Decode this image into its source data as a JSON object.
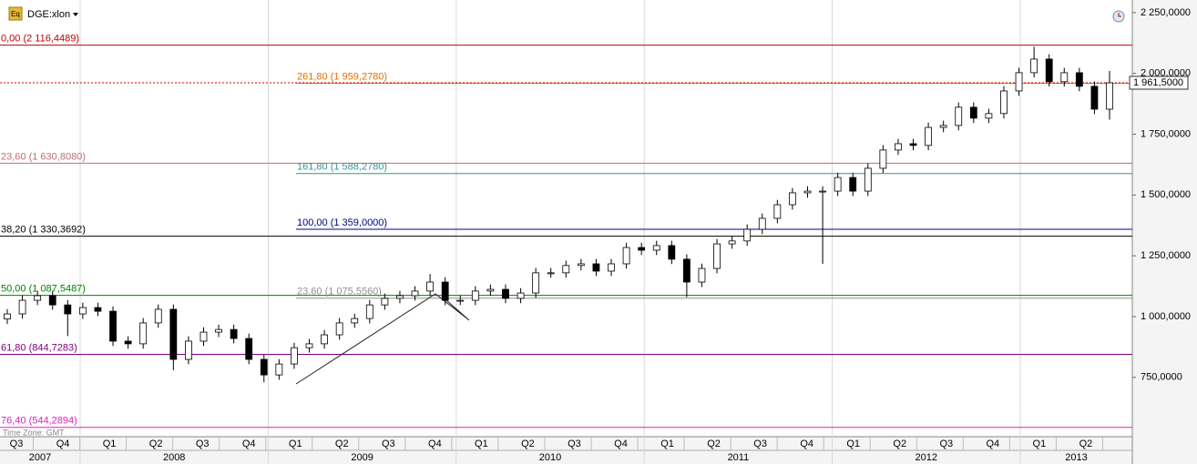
{
  "symbol": "DGE:xlon",
  "time_zone": "Time Zone: GMT",
  "chart_data": {
    "type": "candlestick",
    "ylim": [
      506,
      2302
    ],
    "yticks": [
      {
        "value": 2250,
        "label": "2 250,0000"
      },
      {
        "value": 2000,
        "label": "2 000,0000"
      },
      {
        "value": 1750,
        "label": "1 750,0000"
      },
      {
        "value": 1500,
        "label": "1 500,0000"
      },
      {
        "value": 1250,
        "label": "1 250,0000"
      },
      {
        "value": 1000,
        "label": "1 000,0000"
      },
      {
        "value": 750,
        "label": "750,0000"
      }
    ],
    "quarters": [
      "Q3",
      "Q4",
      "Q1",
      "Q2",
      "Q3",
      "Q4",
      "Q1",
      "Q2",
      "Q3",
      "Q4",
      "Q1",
      "Q2",
      "Q3",
      "Q4",
      "Q1",
      "Q2",
      "Q3",
      "Q4",
      "Q1",
      "Q2",
      "Q3",
      "Q4",
      "Q1",
      "Q2"
    ],
    "years": [
      "2007",
      "2008",
      "2009",
      "2010",
      "2011",
      "2012",
      "2013"
    ],
    "last_price": {
      "value": 1961.5,
      "label": "1 961,5000",
      "color": "#cc0000"
    },
    "up_color": "#ffffff",
    "down_color": "#000000",
    "open": [
      990,
      1011,
      1067,
      1086,
      1048,
      1011,
      1037,
      1022,
      899,
      888,
      974,
      1030,
      824,
      899,
      936,
      947,
      910,
      824,
      760,
      805,
      872,
      888,
      925,
      974,
      992,
      1048,
      1075,
      1086,
      1105,
      1142,
      1067,
      1067,
      1105,
      1112,
      1075,
      1097,
      1180,
      1180,
      1210,
      1217,
      1187,
      1217,
      1284,
      1273,
      1292,
      1236,
      1142,
      1198,
      1299,
      1311,
      1359,
      1404,
      1460,
      1509,
      1516,
      1516,
      1572,
      1516,
      1610,
      1685,
      1711,
      1704,
      1778,
      1786,
      1861,
      1816,
      1835,
      1928,
      2003,
      2059,
      1966,
      2003,
      1947,
      1853
    ],
    "high": [
      1031,
      1087,
      1106,
      1106,
      1068,
      1057,
      1057,
      1042,
      919,
      994,
      1050,
      1050,
      919,
      956,
      967,
      967,
      930,
      844,
      825,
      892,
      908,
      945,
      994,
      1012,
      1068,
      1095,
      1106,
      1125,
      1175,
      1162,
      1087,
      1125,
      1132,
      1132,
      1117,
      1200,
      1200,
      1230,
      1237,
      1237,
      1237,
      1304,
      1304,
      1312,
      1312,
      1256,
      1218,
      1319,
      1331,
      1379,
      1424,
      1480,
      1529,
      1536,
      1536,
      1592,
      1592,
      1630,
      1705,
      1731,
      1731,
      1798,
      1806,
      1881,
      1881,
      1855,
      1948,
      2023,
      2110,
      2079,
      2023,
      2023,
      1967,
      2010
    ],
    "low": [
      970,
      991,
      1047,
      1028,
      920,
      991,
      1002,
      879,
      868,
      868,
      954,
      780,
      804,
      879,
      916,
      890,
      804,
      730,
      740,
      785,
      852,
      868,
      905,
      954,
      972,
      1028,
      1055,
      1066,
      1085,
      1047,
      1047,
      1047,
      1085,
      1055,
      1055,
      1077,
      1160,
      1160,
      1190,
      1167,
      1167,
      1197,
      1253,
      1253,
      1216,
      1080,
      1122,
      1178,
      1279,
      1291,
      1339,
      1384,
      1440,
      1489,
      1217,
      1496,
      1496,
      1496,
      1590,
      1665,
      1684,
      1684,
      1758,
      1766,
      1796,
      1796,
      1815,
      1908,
      1983,
      1946,
      1946,
      1927,
      1833,
      1810
    ],
    "close": [
      1011,
      1067,
      1086,
      1048,
      1011,
      1037,
      1022,
      899,
      888,
      974,
      1030,
      824,
      899,
      936,
      947,
      910,
      824,
      760,
      805,
      872,
      888,
      925,
      974,
      992,
      1048,
      1075,
      1086,
      1105,
      1142,
      1067,
      1067,
      1105,
      1112,
      1075,
      1097,
      1180,
      1180,
      1210,
      1217,
      1187,
      1217,
      1284,
      1273,
      1292,
      1236,
      1142,
      1198,
      1299,
      1311,
      1359,
      1404,
      1460,
      1509,
      1516,
      1516,
      1572,
      1516,
      1610,
      1685,
      1711,
      1704,
      1778,
      1786,
      1861,
      1816,
      1835,
      1928,
      2003,
      2059,
      1966,
      2003,
      1947,
      1853,
      1961.5
    ],
    "fib_levels": [
      {
        "label": "0,00 (2 116,4489)",
        "value": 2116.4489,
        "color": "#c00000",
        "side": "left"
      },
      {
        "label": "23,60 (1 630,8080)",
        "value": 1630.808,
        "color": "#c07070",
        "side": "left"
      },
      {
        "label": "38,20 (1 330,3692)",
        "value": 1330.3692,
        "color": "#000000",
        "side": "left"
      },
      {
        "label": "50,00 (1 087,5487)",
        "value": 1087.5487,
        "color": "#008000",
        "side": "left"
      },
      {
        "label": "61,80 (844,7283)",
        "value": 844.7283,
        "color": "#800080",
        "side": "left"
      },
      {
        "label": "76,40 (544,2894)",
        "value": 544.2894,
        "color": "#e020c0",
        "side": "left"
      },
      {
        "label": "261,80 (1 959,2780)",
        "value": 1959.278,
        "color": "#e07000",
        "side": "right"
      },
      {
        "label": "161,80 (1 588,2780)",
        "value": 1588.278,
        "color": "#3a9090",
        "side": "right"
      },
      {
        "label": "100,00 (1 359,0000)",
        "value": 1359,
        "color": "#000080",
        "side": "right"
      },
      {
        "label": "23,60 (1 075,5560)",
        "value": 1075.556,
        "color": "#909090",
        "side": "right"
      }
    ]
  }
}
